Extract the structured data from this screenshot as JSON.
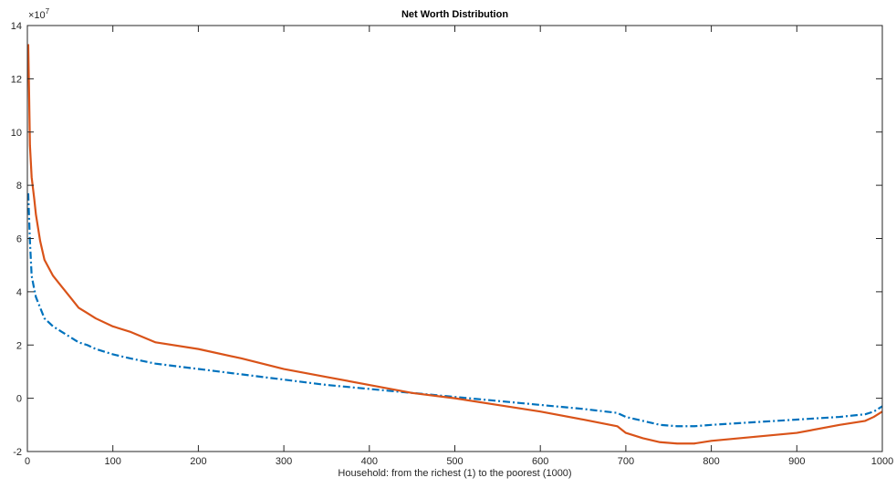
{
  "chart_data": {
    "type": "line",
    "title": "Net Worth Distribution",
    "xlabel": "Household: from the richest (1) to the poorest (1000)",
    "ylabel": "",
    "xlim": [
      0,
      1000
    ],
    "ylim": [
      -2,
      14
    ],
    "y_scale_exponent": {
      "base": "×10",
      "power": "7"
    },
    "x_ticks": [
      0,
      100,
      200,
      300,
      400,
      500,
      600,
      700,
      800,
      900,
      1000
    ],
    "y_ticks": [
      -2,
      0,
      2,
      4,
      6,
      8,
      10,
      12,
      14
    ],
    "grid": false,
    "series": [
      {
        "color": "#0072BD",
        "line_style": "dash-dot",
        "x": [
          1,
          2,
          3,
          5,
          8,
          10,
          15,
          20,
          30,
          40,
          50,
          60,
          70,
          80,
          100,
          120,
          150,
          200,
          250,
          300,
          350,
          400,
          450,
          500,
          550,
          600,
          650,
          690,
          700,
          720,
          740,
          760,
          780,
          800,
          850,
          900,
          950,
          980,
          990,
          1000
        ],
        "y": [
          7.7,
          6.8,
          5.9,
          4.6,
          4.1,
          3.8,
          3.4,
          3.0,
          2.7,
          2.5,
          2.3,
          2.1,
          2.0,
          1.85,
          1.65,
          1.5,
          1.3,
          1.1,
          0.9,
          0.7,
          0.5,
          0.35,
          0.2,
          0.05,
          -0.1,
          -0.25,
          -0.4,
          -0.55,
          -0.7,
          -0.85,
          -1.0,
          -1.05,
          -1.05,
          -1.0,
          -0.9,
          -0.8,
          -0.7,
          -0.6,
          -0.5,
          -0.3
        ]
      },
      {
        "color": "#D95319",
        "line_style": "solid",
        "x": [
          1,
          2,
          3,
          5,
          8,
          10,
          15,
          20,
          30,
          40,
          50,
          60,
          70,
          80,
          100,
          120,
          150,
          200,
          250,
          300,
          350,
          400,
          450,
          500,
          550,
          600,
          650,
          690,
          700,
          720,
          740,
          760,
          780,
          800,
          850,
          900,
          950,
          980,
          990,
          1000
        ],
        "y": [
          13.3,
          11.5,
          9.5,
          8.3,
          7.5,
          6.9,
          5.9,
          5.2,
          4.6,
          4.2,
          3.8,
          3.4,
          3.2,
          3.0,
          2.7,
          2.5,
          2.1,
          1.85,
          1.5,
          1.1,
          0.8,
          0.5,
          0.2,
          0.0,
          -0.25,
          -0.5,
          -0.8,
          -1.05,
          -1.3,
          -1.5,
          -1.65,
          -1.7,
          -1.7,
          -1.6,
          -1.45,
          -1.3,
          -1.0,
          -0.85,
          -0.7,
          -0.5
        ]
      }
    ]
  }
}
